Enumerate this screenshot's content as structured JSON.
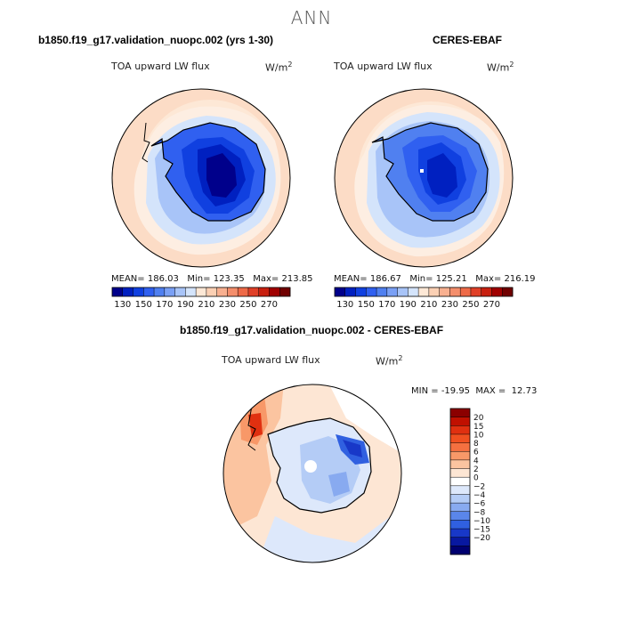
{
  "title": "ANN",
  "panels": [
    {
      "title": "b1850.f19_g17.validation_nuopc.002 (yrs 1-30)",
      "variable": "TOA upward LW flux",
      "units": "W/m",
      "units_exp": "2",
      "mean_label": "MEAN=",
      "mean": "186.03",
      "min_label": "Min=",
      "min": "123.35",
      "max_label": "Max=",
      "max": "213.85"
    },
    {
      "title": "CERES-EBAF",
      "variable": "TOA upward LW flux",
      "units": "W/m",
      "units_exp": "2",
      "mean_label": "MEAN=",
      "mean": "186.67",
      "min_label": "Min=",
      "min": "125.21",
      "max_label": "Max=",
      "max": "216.19"
    }
  ],
  "abs_colorbar": {
    "labels": [
      "130",
      "150",
      "170",
      "190",
      "210",
      "230",
      "250",
      "270"
    ],
    "colors": [
      "#00008b",
      "#0020c0",
      "#1040e0",
      "#3060f0",
      "#5080f0",
      "#7aa0f5",
      "#a8c4f8",
      "#d4e4fb",
      "#fde8d6",
      "#fbd0b4",
      "#f8b090",
      "#f48e6c",
      "#ee6a48",
      "#e04028",
      "#c82010",
      "#a00000",
      "#700000"
    ]
  },
  "diff": {
    "title": "b1850.f19_g17.validation_nuopc.002 - CERES-EBAF",
    "variable": "TOA upward LW flux",
    "units": "W/m",
    "units_exp": "2",
    "min_label": "MIN =",
    "min": "-19.95",
    "max_label": "MAX =",
    "max": "12.73",
    "colorbar_labels": [
      "20",
      "15",
      "10",
      "8",
      "6",
      "4",
      "2",
      "0",
      "−2",
      "−4",
      "−6",
      "−8",
      "−10",
      "−15",
      "−20"
    ],
    "colorbar_colors": [
      "#8b0000",
      "#c01000",
      "#e03010",
      "#f05020",
      "#f57040",
      "#f89868",
      "#fbc4a0",
      "#fde6d4",
      "#ffffff",
      "#dde8fb",
      "#b4ccf6",
      "#88aaf0",
      "#5a86ea",
      "#3060e0",
      "#1838c8",
      "#0818a0",
      "#000070"
    ]
  }
}
